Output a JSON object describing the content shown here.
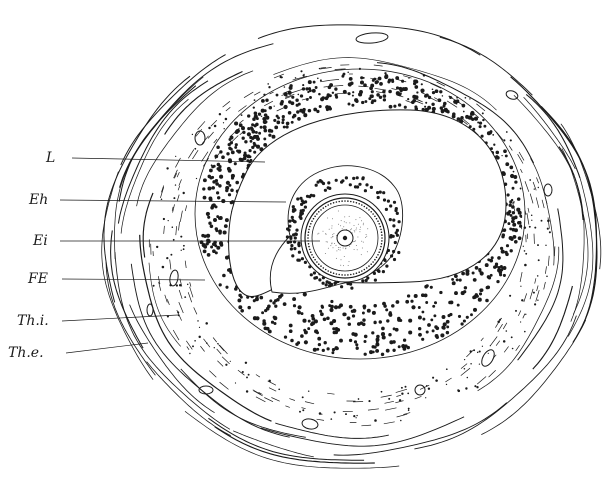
{
  "figure": {
    "labels": [
      "L",
      "Eh",
      "Ei",
      "FE",
      "Th.i.",
      "Th.e."
    ],
    "ink_color": "#1b1b1b",
    "background": "#ffffff"
  }
}
